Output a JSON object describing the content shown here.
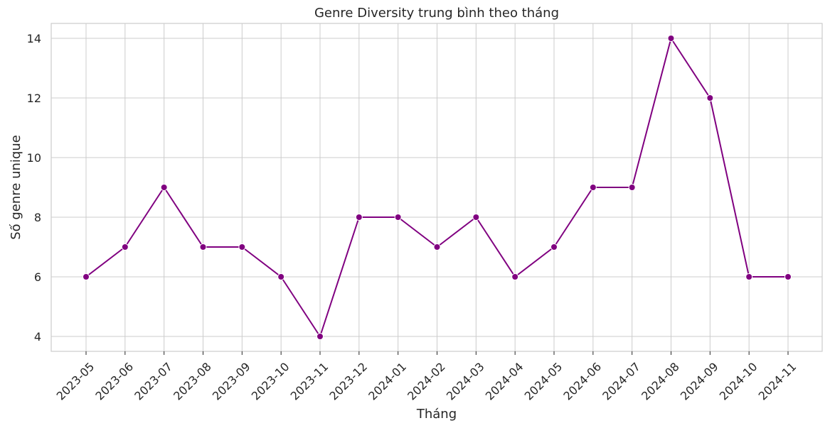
{
  "chart_data": {
    "type": "line",
    "title": "Genre Diversity trung bình theo tháng",
    "xlabel": "Tháng",
    "ylabel": "Số genre unique",
    "categories": [
      "2023-05",
      "2023-06",
      "2023-07",
      "2023-08",
      "2023-09",
      "2023-10",
      "2023-11",
      "2023-12",
      "2024-01",
      "2024-02",
      "2024-03",
      "2024-04",
      "2024-05",
      "2024-06",
      "2024-07",
      "2024-08",
      "2024-09",
      "2024-10",
      "2024-11"
    ],
    "values": [
      6,
      7,
      9,
      7,
      7,
      6,
      4,
      8,
      8,
      7,
      8,
      6,
      7,
      9,
      9,
      14,
      12,
      6,
      6
    ],
    "ylim": [
      3.5,
      14.5
    ],
    "yticks": [
      4,
      6,
      8,
      10,
      12,
      14
    ],
    "grid": true,
    "line_color": "#800080",
    "marker": "circle"
  }
}
